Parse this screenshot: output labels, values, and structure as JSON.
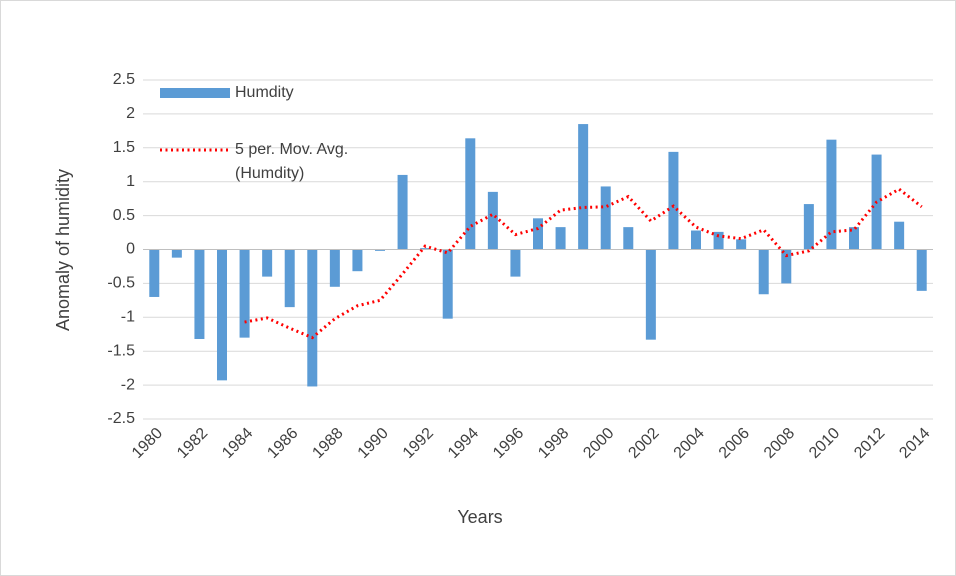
{
  "chart_data": {
    "type": "bar",
    "categories": [
      "1980",
      null,
      "1982",
      null,
      "1984",
      null,
      "1986",
      null,
      "1988",
      null,
      "1990",
      null,
      "1992",
      null,
      "1994",
      null,
      "1996",
      null,
      "1998",
      null,
      "2000",
      null,
      "2002",
      null,
      "2004",
      null,
      "2006",
      null,
      "2008",
      null,
      "2010",
      null,
      "2012",
      null,
      "2014"
    ],
    "series": [
      {
        "name": "Humdity",
        "type": "bar",
        "color": "#5b9bd5",
        "values": [
          -0.7,
          -0.12,
          -1.32,
          -1.93,
          -1.3,
          -0.4,
          -0.85,
          -2.02,
          -0.55,
          -0.32,
          -0.02,
          1.1,
          0.02,
          -1.02,
          1.64,
          0.85,
          -0.4,
          0.46,
          0.33,
          1.85,
          0.93,
          0.33,
          -1.33,
          1.44,
          0.28,
          0.26,
          0.15,
          -0.66,
          -0.5,
          0.67,
          1.62,
          0.33,
          1.4,
          0.41,
          -0.61
        ]
      },
      {
        "name": "5 per. Mov. Avg. (Humdity)",
        "type": "line",
        "color": "#ff0000",
        "values": [
          null,
          null,
          null,
          null,
          -1.07,
          -1.01,
          -1.16,
          -1.3,
          -1.02,
          -0.83,
          -0.75,
          -0.36,
          0.05,
          -0.05,
          0.34,
          0.52,
          0.22,
          0.31,
          0.58,
          0.62,
          0.63,
          0.78,
          0.42,
          0.64,
          0.33,
          0.2,
          0.16,
          0.29,
          -0.09,
          -0.02,
          0.26,
          0.29,
          0.7,
          0.89,
          0.63
        ]
      }
    ],
    "x_label": "Years",
    "y_label": "Anomaly of humidity",
    "ylim": [
      -2.5,
      2.5
    ],
    "yticks": [
      -2.5,
      -2,
      -1.5,
      -1,
      -0.5,
      0,
      0.5,
      1,
      1.5,
      2,
      2.5
    ],
    "grid": true,
    "legend": "top-left"
  }
}
